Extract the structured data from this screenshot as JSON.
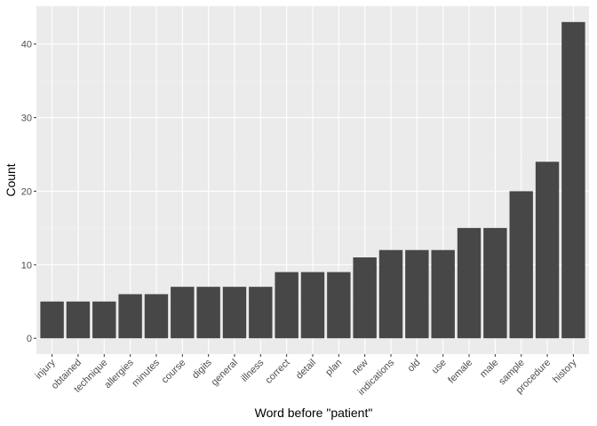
{
  "chart_data": {
    "type": "bar",
    "title": "",
    "xlabel": "Word before \"patient\"",
    "ylabel": "Count",
    "categories": [
      "injury",
      "obtained",
      "technique",
      "allergies",
      "minutes",
      "course",
      "digits",
      "general",
      "illness",
      "correct",
      "detail",
      "plan",
      "new",
      "indications",
      "old",
      "use",
      "female",
      "male",
      "sample",
      "procedure",
      "history"
    ],
    "values": [
      5,
      5,
      5,
      6,
      6,
      7,
      7,
      7,
      7,
      9,
      9,
      9,
      11,
      12,
      12,
      12,
      15,
      15,
      20,
      24,
      43
    ],
    "ylim": [
      -2.15,
      45.15
    ],
    "yticks": [
      0,
      10,
      20,
      30,
      40
    ],
    "grid": true,
    "legend": "none",
    "colors": {
      "bar": "#474747",
      "panel": "#ebebeb",
      "grid_major": "#ffffff",
      "grid_minor": "#f2f2f2"
    }
  }
}
